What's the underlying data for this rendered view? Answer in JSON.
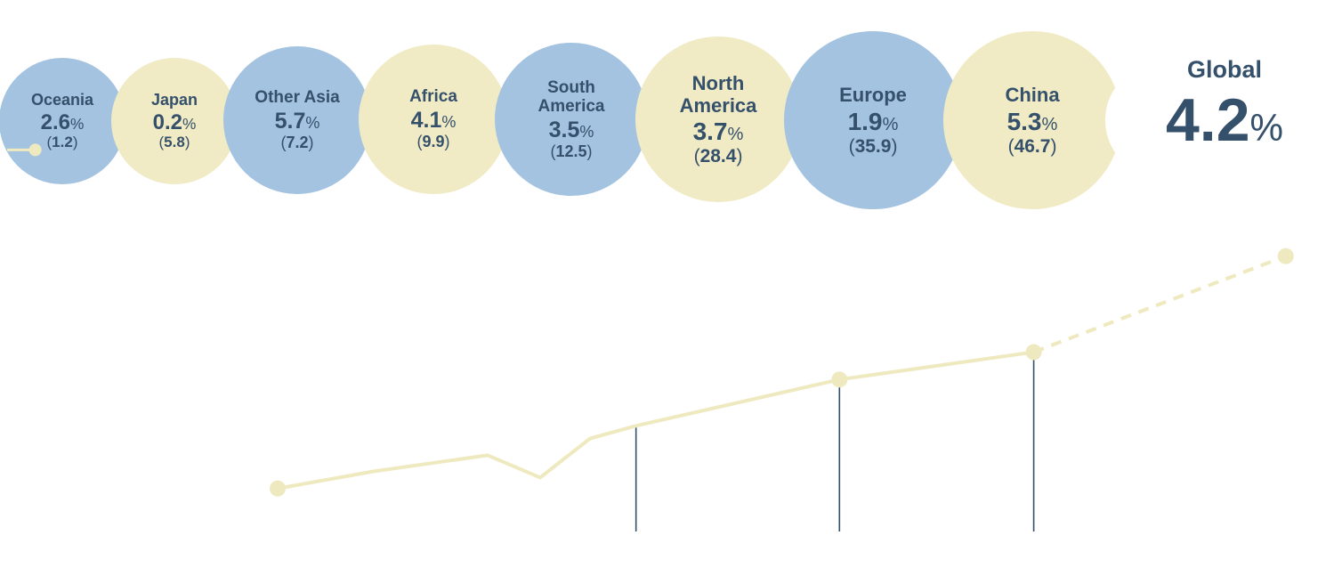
{
  "colors": {
    "blue": "#a3c3e0",
    "yellow": "#f0ebc4",
    "text": "#35506b",
    "line": "#efe9bf",
    "dropline": "#35506b"
  },
  "percent_sign": "%",
  "global": {
    "label": "Global",
    "rate": "4.2",
    "unit": "%"
  },
  "chart_data": [
    {
      "type": "bubble",
      "color_by_item": [
        "blue",
        "yellow",
        "blue",
        "yellow",
        "blue",
        "yellow",
        "blue",
        "yellow"
      ],
      "items": [
        {
          "name": "Oceania",
          "rate": "2.6",
          "value": "1.2",
          "color": "blue"
        },
        {
          "name": "Japan",
          "rate": "0.2",
          "value": "5.8",
          "color": "yellow"
        },
        {
          "name": "Other Asia",
          "rate": "5.7",
          "value": "7.2",
          "color": "blue"
        },
        {
          "name": "Africa",
          "rate": "4.1",
          "value": "9.9",
          "color": "yellow"
        },
        {
          "name": "South\nAmerica",
          "rate": "3.5",
          "value": "12.5",
          "color": "blue"
        },
        {
          "name": "North\nAmerica",
          "rate": "3.7",
          "value": "28.4",
          "color": "yellow"
        },
        {
          "name": "Europe",
          "rate": "1.9",
          "value": "35.9",
          "color": "blue"
        },
        {
          "name": "China",
          "rate": "5.3",
          "value": "46.7",
          "color": "yellow"
        }
      ]
    },
    {
      "type": "line",
      "xlim": [
        0,
        100
      ],
      "ylim": [
        0,
        100
      ],
      "x": [
        20,
        27.3,
        36,
        40,
        43.8,
        47.3,
        62.8,
        77.6,
        96.8
      ],
      "y": [
        25,
        30,
        34.7,
        28.2,
        39.6,
        43.3,
        56.8,
        64.8,
        92.8
      ],
      "projection_from_index": 7,
      "markers_at": [
        0,
        6,
        7,
        8
      ],
      "droplines_at": [
        5,
        6,
        7
      ],
      "start_marker": {
        "x": 1.4,
        "y": 123.8
      }
    }
  ]
}
